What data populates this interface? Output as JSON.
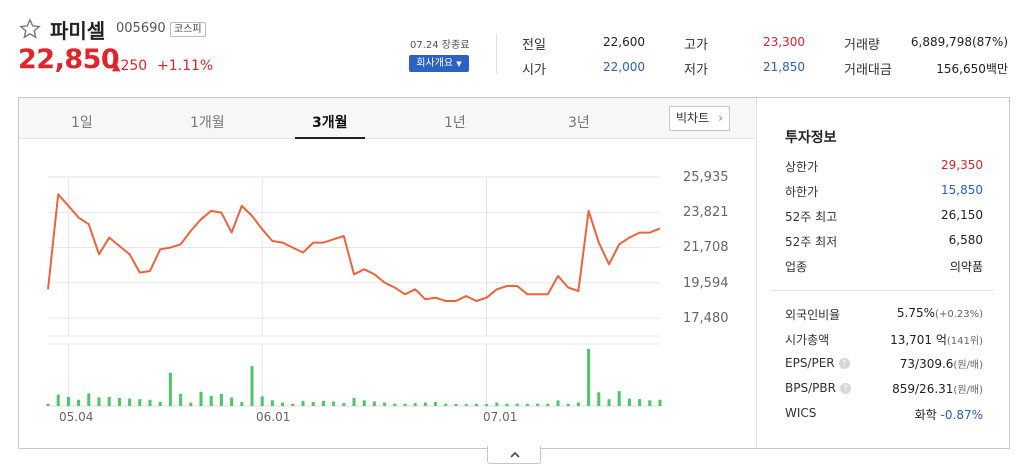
{
  "header": {
    "name": "파미셀",
    "code": "005690",
    "market": "코스피",
    "price": "22,850",
    "change": "250",
    "change_pct": "+1.11%",
    "close_label": "07.24 장종료",
    "company_button": "회사개요"
  },
  "summary": [
    {
      "label": "전일",
      "value": "22,600",
      "color": "dark"
    },
    {
      "label": "시가",
      "value": "22,000",
      "color": "blue"
    },
    {
      "label": "고가",
      "value": "23,300",
      "color": "red"
    },
    {
      "label": "저가",
      "value": "21,850",
      "color": "blue"
    },
    {
      "label": "거래량",
      "value": "6,889,798(87%)",
      "color": "dark"
    },
    {
      "label": "거래대금",
      "value": "156,650백만",
      "color": "dark"
    }
  ],
  "tabs": [
    "1일",
    "1개월",
    "3개월",
    "1년",
    "3년"
  ],
  "active_tab": "3개월",
  "big_chart_button": "빅차트",
  "chart_data": {
    "type": "line",
    "title": "",
    "y_ticks": [
      "25,935",
      "23,821",
      "21,708",
      "19,594",
      "17,480"
    ],
    "y_tick_values": [
      25935,
      23821,
      21708,
      19594,
      17480
    ],
    "x_ticks": [
      "05.04",
      "06.01",
      "07.01"
    ],
    "x_tick_index": [
      2,
      21,
      43
    ],
    "price": [
      19200,
      24900,
      24200,
      23500,
      23100,
      21300,
      22300,
      21800,
      21300,
      20200,
      20300,
      21600,
      21700,
      21900,
      22700,
      23400,
      23900,
      23800,
      22600,
      24200,
      23600,
      22800,
      22100,
      22000,
      21700,
      21400,
      22000,
      22000,
      22200,
      22400,
      20100,
      20400,
      20100,
      19600,
      19300,
      18900,
      19200,
      18600,
      18700,
      18500,
      18500,
      18800,
      18500,
      18700,
      19200,
      19400,
      19400,
      18900,
      18900,
      18900,
      20000,
      19300,
      19100,
      23900,
      22000,
      20700,
      21900,
      22300,
      22600,
      22600,
      22850
    ],
    "volume": [
      0.04,
      0.2,
      0.16,
      0.11,
      0.22,
      0.15,
      0.16,
      0.14,
      0.13,
      0.12,
      0.11,
      0.07,
      0.58,
      0.21,
      0.06,
      0.25,
      0.18,
      0.21,
      0.15,
      0.07,
      0.7,
      0.17,
      0.1,
      0.06,
      0.04,
      0.09,
      0.07,
      0.09,
      0.08,
      0.05,
      0.14,
      0.1,
      0.08,
      0.06,
      0.04,
      0.04,
      0.05,
      0.06,
      0.07,
      0.04,
      0.03,
      0.03,
      0.04,
      0.03,
      0.06,
      0.04,
      0.04,
      0.04,
      0.04,
      0.04,
      0.1,
      0.04,
      0.06,
      1.0,
      0.24,
      0.12,
      0.26,
      0.13,
      0.12,
      0.1,
      0.11
    ],
    "line_color": "#f0623a",
    "volume_color": "#4cc768",
    "grid": true
  },
  "investment_info": {
    "title": "투자정보",
    "group1": [
      {
        "label": "상한가",
        "value": "29,350",
        "color": "red"
      },
      {
        "label": "하한가",
        "value": "15,850",
        "color": "blue"
      },
      {
        "label": "52주 최고",
        "value": "26,150",
        "color": "dark"
      },
      {
        "label": "52주 최저",
        "value": "6,580",
        "color": "dark"
      },
      {
        "label": "업종",
        "value": "의약품",
        "color": "dark"
      }
    ],
    "group2": [
      {
        "label": "외국인비율",
        "value": "5.75%",
        "sub": "(+0.23%)",
        "help": false
      },
      {
        "label": "시가총액",
        "value": "13,701 억",
        "sub": "(141위)",
        "help": false
      },
      {
        "label": "EPS/PER",
        "value": "73/309.6",
        "sub": "(원/배)",
        "help": true
      },
      {
        "label": "BPS/PBR",
        "value": "859/26.31",
        "sub": "(원/배)",
        "help": true
      },
      {
        "label": "WICS",
        "value": "화학",
        "sub": "-0.87%",
        "help": false
      }
    ]
  },
  "colors": {
    "up": "#e0242b",
    "down": "#2a5fc4",
    "accent": "#2a63c4"
  }
}
